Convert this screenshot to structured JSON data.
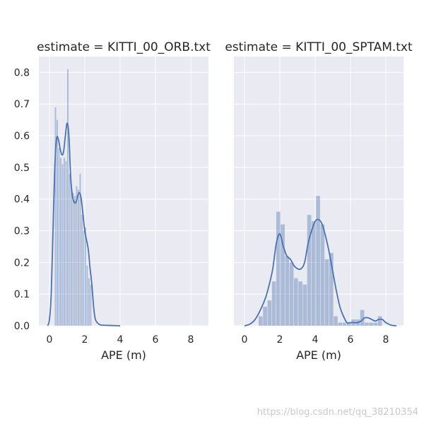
{
  "colors": {
    "background": "#eaeaf2",
    "grid": "#ffffff",
    "bar_fill": "#4c72b0",
    "bar_opacity": 0.4,
    "kde_line": "#4c72b0",
    "text": "#262626"
  },
  "watermark": "https://blog.csdn.net/qq_38210354",
  "chart_data": [
    {
      "type": "histogram+kde",
      "title": "estimate = KITTI_00_ORB.txt",
      "xlabel": "APE (m)",
      "ylabel": "",
      "xlim": [
        -0.6,
        9.0
      ],
      "ylim": [
        0,
        0.85
      ],
      "xticks": [
        "0",
        "2",
        "4",
        "6",
        "8"
      ],
      "xtick_values": [
        0,
        2,
        4,
        6,
        8
      ],
      "yticks": [
        "0.0",
        "0.1",
        "0.2",
        "0.3",
        "0.4",
        "0.5",
        "0.6",
        "0.7",
        "0.8"
      ],
      "ytick_values": [
        0,
        0.1,
        0.2,
        0.3,
        0.4,
        0.5,
        0.6,
        0.7,
        0.8
      ],
      "grid": true,
      "histogram": {
        "bin_width": 0.1,
        "bin_starts": [
          0.3,
          0.4,
          0.5,
          0.6,
          0.7,
          0.8,
          0.9,
          1.0,
          1.1,
          1.2,
          1.3,
          1.4,
          1.5,
          1.6,
          1.7,
          1.8,
          1.9,
          2.0,
          2.1,
          2.2,
          2.3
        ],
        "density": [
          0.69,
          0.65,
          0.56,
          0.53,
          0.51,
          0.53,
          0.52,
          0.81,
          0.48,
          0.44,
          0.42,
          0.41,
          0.44,
          0.43,
          0.48,
          0.35,
          0.3,
          0.31,
          0.19,
          0.15,
          0.13
        ]
      },
      "kde": {
        "x": [
          -0.1,
          0.0,
          0.1,
          0.2,
          0.3,
          0.4,
          0.5,
          0.6,
          0.7,
          0.8,
          0.9,
          1.0,
          1.1,
          1.2,
          1.3,
          1.4,
          1.5,
          1.6,
          1.7,
          1.8,
          1.9,
          2.0,
          2.1,
          2.2,
          2.3,
          2.4,
          2.5,
          2.6,
          2.8,
          3.0,
          3.5,
          4.0
        ],
        "y": [
          0.0,
          0.02,
          0.1,
          0.3,
          0.5,
          0.59,
          0.59,
          0.56,
          0.54,
          0.55,
          0.6,
          0.64,
          0.6,
          0.47,
          0.41,
          0.39,
          0.39,
          0.41,
          0.42,
          0.4,
          0.35,
          0.3,
          0.27,
          0.24,
          0.18,
          0.13,
          0.06,
          0.02,
          0.005,
          0.002,
          0.001,
          0.0
        ]
      }
    },
    {
      "type": "histogram+kde",
      "title": "estimate = KITTI_00_SPTAM.txt",
      "xlabel": "APE (m)",
      "ylabel": "",
      "xlim": [
        -0.6,
        9.0
      ],
      "ylim": [
        0,
        0.85
      ],
      "xticks": [
        "0",
        "2",
        "4",
        "6",
        "8"
      ],
      "xtick_values": [
        0,
        2,
        4,
        6,
        8
      ],
      "yticks_shared": true,
      "grid": true,
      "histogram": {
        "bin_width": 0.25,
        "bin_starts": [
          0.8,
          1.05,
          1.3,
          1.55,
          1.8,
          2.05,
          2.3,
          2.55,
          2.8,
          3.05,
          3.3,
          3.55,
          3.8,
          4.05,
          4.3,
          4.55,
          4.8,
          5.05,
          5.3,
          5.55,
          5.8,
          6.05,
          6.3,
          6.55,
          6.8,
          7.05,
          7.3,
          7.55
        ],
        "density": [
          0.03,
          0.06,
          0.08,
          0.14,
          0.36,
          0.32,
          0.22,
          0.2,
          0.15,
          0.14,
          0.13,
          0.35,
          0.33,
          0.41,
          0.32,
          0.21,
          0.23,
          0.03,
          0.01,
          0.01,
          0.01,
          0.02,
          0.02,
          0.05,
          0.01,
          0.01,
          0.01,
          0.03
        ]
      },
      "kde": {
        "x": [
          0.0,
          0.3,
          0.6,
          0.9,
          1.2,
          1.4,
          1.6,
          1.8,
          2.0,
          2.2,
          2.4,
          2.6,
          2.8,
          3.0,
          3.2,
          3.4,
          3.6,
          3.8,
          4.0,
          4.2,
          4.4,
          4.6,
          4.8,
          5.0,
          5.2,
          5.4,
          5.6,
          5.8,
          6.0,
          6.2,
          6.4,
          6.6,
          6.8,
          7.0,
          7.2,
          7.4,
          7.6,
          7.8,
          8.0,
          8.3,
          8.6
        ],
        "y": [
          0.0,
          0.005,
          0.02,
          0.05,
          0.09,
          0.13,
          0.18,
          0.26,
          0.29,
          0.25,
          0.22,
          0.21,
          0.19,
          0.18,
          0.18,
          0.2,
          0.26,
          0.3,
          0.33,
          0.335,
          0.32,
          0.28,
          0.23,
          0.17,
          0.11,
          0.06,
          0.03,
          0.01,
          0.01,
          0.01,
          0.01,
          0.015,
          0.025,
          0.025,
          0.02,
          0.015,
          0.02,
          0.02,
          0.01,
          0.002,
          0.0
        ]
      }
    }
  ]
}
